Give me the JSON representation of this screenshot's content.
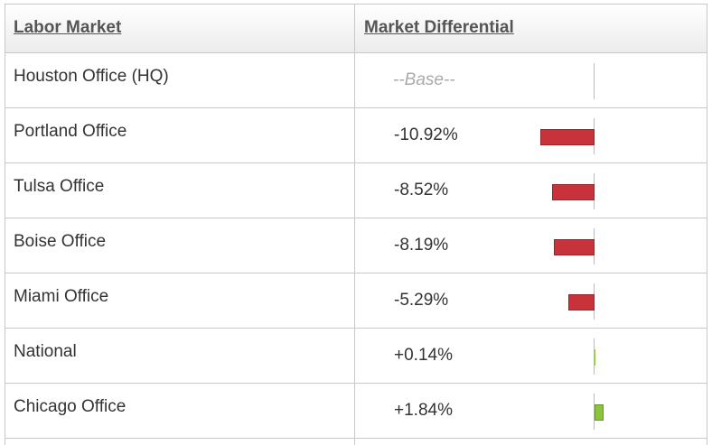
{
  "header": {
    "columns": [
      "Labor Market",
      "Market Differential"
    ]
  },
  "table": {
    "rows": [
      {
        "label": "Houston Office (HQ)",
        "differential": "--Base--"
      },
      {
        "label": "Portland Office",
        "differential": "-10.92%",
        "value": -10.92
      },
      {
        "label": "Tulsa Office",
        "differential": "-8.52%",
        "value": -8.52
      },
      {
        "label": "Boise Office",
        "differential": "-8.19%",
        "value": -8.19
      },
      {
        "label": "Miami Office",
        "differential": "-5.29%",
        "value": -5.29
      },
      {
        "label": "National",
        "differential": "+0.14%",
        "value": 0.14
      },
      {
        "label": "Chicago Office",
        "differential": "+1.84%",
        "value": 1.84
      }
    ]
  },
  "colors": {
    "negative": "#c8323a",
    "positive": "#8cc43c"
  }
}
